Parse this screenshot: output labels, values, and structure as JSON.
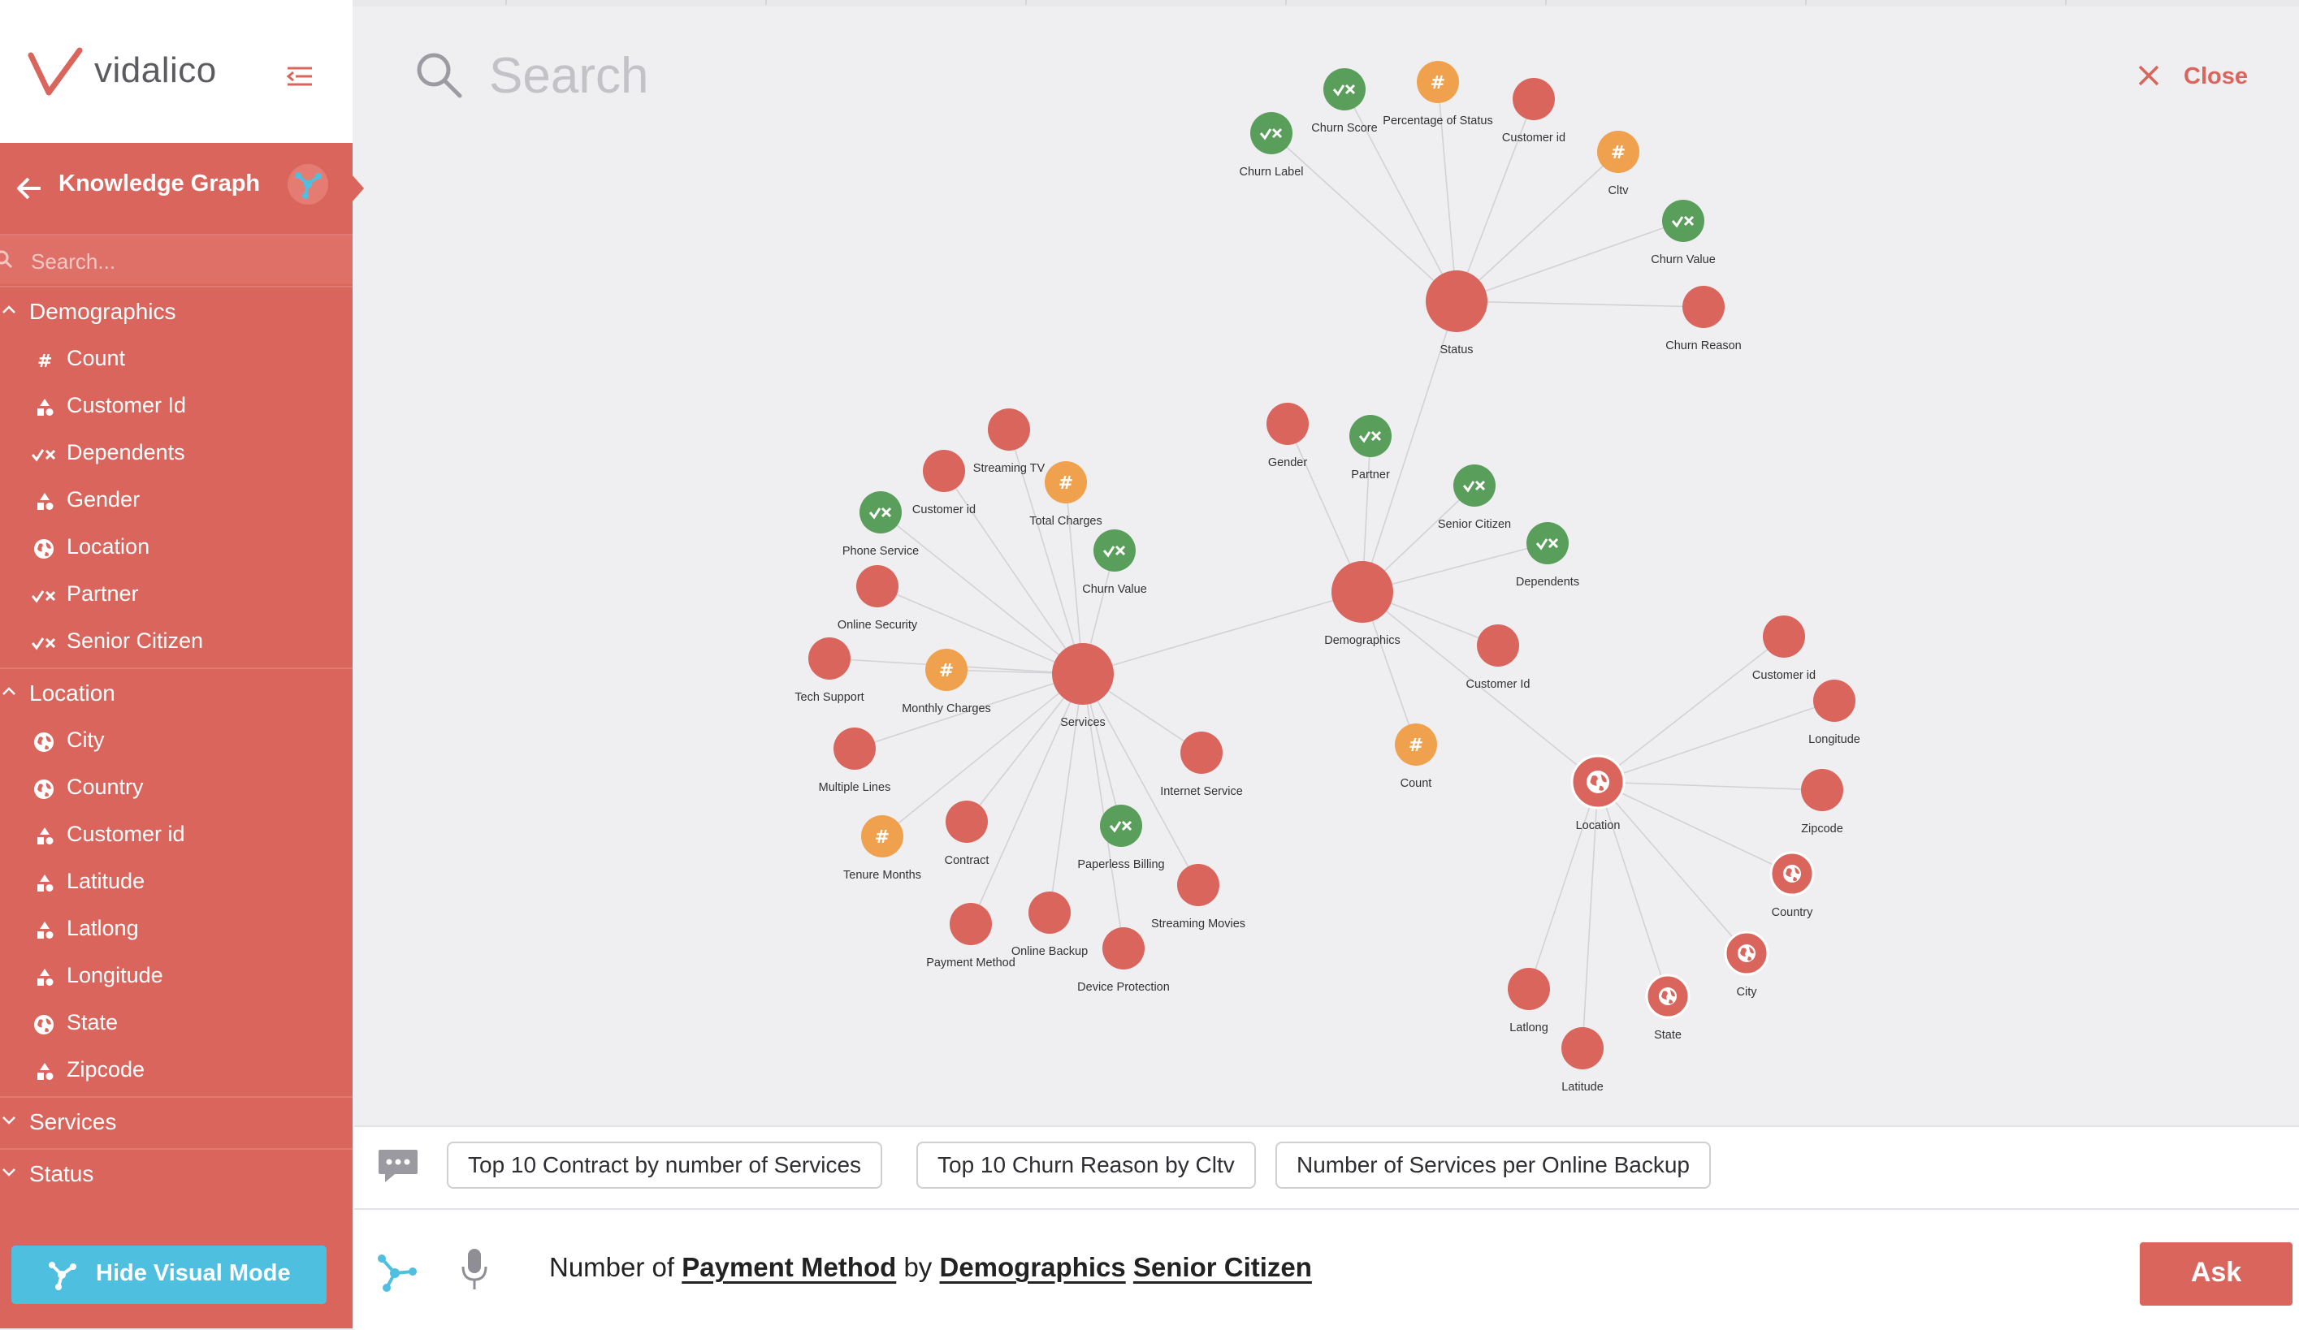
{
  "brand": {
    "name": "vidalico",
    "accent": "#d9655c"
  },
  "sidebar": {
    "title": "Knowledge Graph",
    "search_placeholder": "Search...",
    "groups": [
      {
        "label": "Demographics",
        "expanded": true,
        "items": [
          {
            "label": "Count",
            "icon": "hash-icon"
          },
          {
            "label": "Customer Id",
            "icon": "shapes-icon"
          },
          {
            "label": "Dependents",
            "icon": "check-x-icon"
          },
          {
            "label": "Gender",
            "icon": "shapes-icon"
          },
          {
            "label": "Location",
            "icon": "globe-icon"
          },
          {
            "label": "Partner",
            "icon": "check-x-icon"
          },
          {
            "label": "Senior Citizen",
            "icon": "check-x-icon"
          }
        ]
      },
      {
        "label": "Location",
        "expanded": true,
        "items": [
          {
            "label": "City",
            "icon": "globe-icon"
          },
          {
            "label": "Country",
            "icon": "globe-icon"
          },
          {
            "label": "Customer id",
            "icon": "shapes-icon"
          },
          {
            "label": "Latitude",
            "icon": "shapes-icon"
          },
          {
            "label": "Latlong",
            "icon": "shapes-icon"
          },
          {
            "label": "Longitude",
            "icon": "shapes-icon"
          },
          {
            "label": "State",
            "icon": "globe-icon"
          },
          {
            "label": "Zipcode",
            "icon": "shapes-icon"
          }
        ]
      },
      {
        "label": "Services",
        "expanded": false,
        "items": []
      },
      {
        "label": "Status",
        "expanded": false,
        "items": []
      }
    ],
    "hide_visual_label": "Hide Visual Mode"
  },
  "search": {
    "placeholder": "Search"
  },
  "close_label": "Close",
  "graph": {
    "colors": {
      "category": "#d9655c",
      "boolean": "#5a9e5c",
      "numeric": "#f0a14d",
      "edge": "#d2d2d6"
    },
    "nodes": [
      {
        "id": "status",
        "label": "Status",
        "kind": "category",
        "hub": true
      },
      {
        "id": "st_churn_label",
        "label": "Churn Label",
        "kind": "boolean"
      },
      {
        "id": "st_churn_score",
        "label": "Churn Score",
        "kind": "boolean"
      },
      {
        "id": "st_pct",
        "label": "Percentage of Status",
        "kind": "numeric"
      },
      {
        "id": "st_cust",
        "label": "Customer id",
        "kind": "category"
      },
      {
        "id": "st_cltv",
        "label": "Cltv",
        "kind": "numeric"
      },
      {
        "id": "st_churn_value",
        "label": "Churn Value",
        "kind": "boolean"
      },
      {
        "id": "st_churn_reason",
        "label": "Churn Reason",
        "kind": "category"
      },
      {
        "id": "services",
        "label": "Services",
        "kind": "category",
        "hub": true
      },
      {
        "id": "sv_streaming_tv",
        "label": "Streaming TV",
        "kind": "category"
      },
      {
        "id": "sv_cust",
        "label": "Customer id",
        "kind": "category"
      },
      {
        "id": "sv_total",
        "label": "Total Charges",
        "kind": "numeric"
      },
      {
        "id": "sv_phone",
        "label": "Phone Service",
        "kind": "boolean"
      },
      {
        "id": "sv_churn_value",
        "label": "Churn Value",
        "kind": "boolean"
      },
      {
        "id": "sv_online_sec",
        "label": "Online Security",
        "kind": "category"
      },
      {
        "id": "sv_tech",
        "label": "Tech Support",
        "kind": "category"
      },
      {
        "id": "sv_monthly",
        "label": "Monthly Charges",
        "kind": "numeric"
      },
      {
        "id": "sv_multiple",
        "label": "Multiple Lines",
        "kind": "category"
      },
      {
        "id": "sv_internet",
        "label": "Internet Service",
        "kind": "category"
      },
      {
        "id": "sv_contract",
        "label": "Contract",
        "kind": "category"
      },
      {
        "id": "sv_tenure",
        "label": "Tenure Months",
        "kind": "numeric"
      },
      {
        "id": "sv_paperless",
        "label": "Paperless Billing",
        "kind": "boolean"
      },
      {
        "id": "sv_streaming_movies",
        "label": "Streaming Movies",
        "kind": "category"
      },
      {
        "id": "sv_payment",
        "label": "Payment Method",
        "kind": "category"
      },
      {
        "id": "sv_online_backup",
        "label": "Online Backup",
        "kind": "category"
      },
      {
        "id": "sv_device",
        "label": "Device Protection",
        "kind": "category"
      },
      {
        "id": "demographics",
        "label": "Demographics",
        "kind": "category",
        "hub": true
      },
      {
        "id": "dm_gender",
        "label": "Gender",
        "kind": "category"
      },
      {
        "id": "dm_partner",
        "label": "Partner",
        "kind": "boolean"
      },
      {
        "id": "dm_senior",
        "label": "Senior Citizen",
        "kind": "boolean"
      },
      {
        "id": "dm_dependents",
        "label": "Dependents",
        "kind": "boolean"
      },
      {
        "id": "dm_cust",
        "label": "Customer Id",
        "kind": "category"
      },
      {
        "id": "dm_count",
        "label": "Count",
        "kind": "numeric"
      },
      {
        "id": "location",
        "label": "Location",
        "kind": "geo",
        "hub": true
      },
      {
        "id": "lc_cust",
        "label": "Customer id",
        "kind": "category"
      },
      {
        "id": "lc_longitude",
        "label": "Longitude",
        "kind": "category"
      },
      {
        "id": "lc_zipcode",
        "label": "Zipcode",
        "kind": "category"
      },
      {
        "id": "lc_country",
        "label": "Country",
        "kind": "geo"
      },
      {
        "id": "lc_city",
        "label": "City",
        "kind": "geo"
      },
      {
        "id": "lc_state",
        "label": "State",
        "kind": "geo"
      },
      {
        "id": "lc_latlong",
        "label": "Latlong",
        "kind": "category"
      },
      {
        "id": "lc_latitude",
        "label": "Latitude",
        "kind": "category"
      }
    ],
    "edges": [
      [
        "status",
        "st_churn_label"
      ],
      [
        "status",
        "st_churn_score"
      ],
      [
        "status",
        "st_pct"
      ],
      [
        "status",
        "st_cust"
      ],
      [
        "status",
        "st_cltv"
      ],
      [
        "status",
        "st_churn_value"
      ],
      [
        "status",
        "st_churn_reason"
      ],
      [
        "services",
        "sv_streaming_tv"
      ],
      [
        "services",
        "sv_cust"
      ],
      [
        "services",
        "sv_total"
      ],
      [
        "services",
        "sv_phone"
      ],
      [
        "services",
        "sv_churn_value"
      ],
      [
        "services",
        "sv_online_sec"
      ],
      [
        "services",
        "sv_tech"
      ],
      [
        "services",
        "sv_monthly"
      ],
      [
        "services",
        "sv_multiple"
      ],
      [
        "services",
        "sv_internet"
      ],
      [
        "services",
        "sv_contract"
      ],
      [
        "services",
        "sv_tenure"
      ],
      [
        "services",
        "sv_paperless"
      ],
      [
        "services",
        "sv_streaming_movies"
      ],
      [
        "services",
        "sv_payment"
      ],
      [
        "services",
        "sv_online_backup"
      ],
      [
        "services",
        "sv_device"
      ],
      [
        "demographics",
        "dm_gender"
      ],
      [
        "demographics",
        "dm_partner"
      ],
      [
        "demographics",
        "dm_senior"
      ],
      [
        "demographics",
        "dm_dependents"
      ],
      [
        "demographics",
        "dm_cust"
      ],
      [
        "demographics",
        "dm_count"
      ],
      [
        "location",
        "lc_cust"
      ],
      [
        "location",
        "lc_longitude"
      ],
      [
        "location",
        "lc_zipcode"
      ],
      [
        "location",
        "lc_country"
      ],
      [
        "location",
        "lc_city"
      ],
      [
        "location",
        "lc_state"
      ],
      [
        "location",
        "lc_latlong"
      ],
      [
        "location",
        "lc_latitude"
      ],
      [
        "demographics",
        "status"
      ],
      [
        "demographics",
        "services"
      ],
      [
        "demographics",
        "location"
      ]
    ]
  },
  "suggestions": [
    "Top 10 Contract by number of Services",
    "Top 10 Churn Reason by Cltv",
    "Number of Services per Online Backup"
  ],
  "query": {
    "parts": [
      {
        "text": "Number of",
        "token": false
      },
      {
        "text": "Payment Method",
        "token": true
      },
      {
        "text": "by",
        "token": false
      },
      {
        "text": "Demographics",
        "token": true
      },
      {
        "text": "Senior Citizen",
        "token": true
      }
    ]
  },
  "ask_label": "Ask"
}
